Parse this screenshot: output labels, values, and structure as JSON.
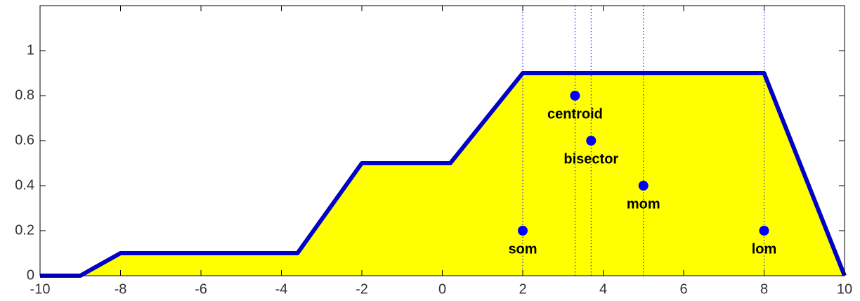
{
  "chart_data": {
    "type": "area",
    "x": [
      -10,
      -9,
      -8,
      -3.6,
      -2,
      0.2,
      2,
      8,
      10
    ],
    "series": [
      {
        "color": "#0000c8",
        "fill": "#ffff00",
        "values": [
          0,
          0,
          0.1,
          0.1,
          0.5,
          0.5,
          0.9,
          0.9,
          0
        ]
      }
    ],
    "xlim": [
      -10,
      10
    ],
    "xticks": [
      -10,
      -8,
      -6,
      -4,
      -2,
      0,
      2,
      4,
      6,
      8,
      10
    ],
    "ylim": [
      0,
      1.2
    ],
    "yticks": [
      0,
      0.2,
      0.4,
      0.6,
      0.8,
      1
    ],
    "marker_color": "#0000ff",
    "annotations": [
      {
        "label": "centroid",
        "x": 3.3,
        "y": 0.8
      },
      {
        "label": "bisector",
        "x": 3.7,
        "y": 0.6
      },
      {
        "label": "mom",
        "x": 5,
        "y": 0.4
      },
      {
        "label": "som",
        "x": 2,
        "y": 0.2
      },
      {
        "label": "lom",
        "x": 8,
        "y": 0.2
      }
    ]
  }
}
